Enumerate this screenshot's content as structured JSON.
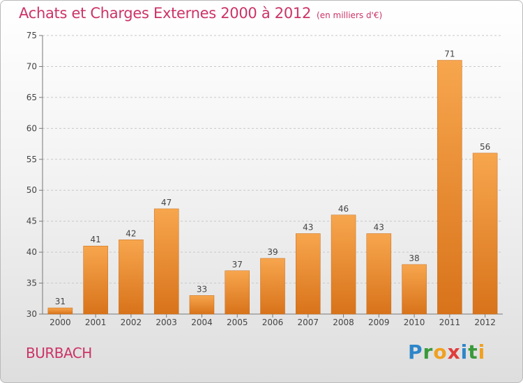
{
  "header": {
    "title": "Achats et Charges Externes 2000 à 2012",
    "unit": "(en milliers d'€)"
  },
  "footer": {
    "commune": "BURBACH",
    "brand_letters": [
      {
        "ch": "P",
        "color": "#2e86c8"
      },
      {
        "ch": "r",
        "color": "#3a9a3a"
      },
      {
        "ch": "o",
        "color": "#f0a020"
      },
      {
        "ch": "x",
        "color": "#e03c3c"
      },
      {
        "ch": "i",
        "color": "#2e86c8"
      },
      {
        "ch": "t",
        "color": "#3a9a3a"
      },
      {
        "ch": "i",
        "color": "#f0a020"
      }
    ]
  },
  "chart_data": {
    "type": "bar",
    "categories": [
      "2000",
      "2001",
      "2002",
      "2003",
      "2004",
      "2005",
      "2006",
      "2007",
      "2008",
      "2009",
      "2010",
      "2011",
      "2012"
    ],
    "values": [
      31,
      41,
      42,
      47,
      33,
      37,
      39,
      43,
      46,
      43,
      38,
      71,
      56
    ],
    "ylim": [
      30,
      75
    ],
    "yticks": [
      30,
      35,
      40,
      45,
      50,
      55,
      60,
      65,
      70,
      75
    ],
    "grid": "horizontal dashed",
    "bar_color_top": "#f7a64e",
    "bar_color_bottom": "#d8731a",
    "title_color": "#cc3366"
  }
}
